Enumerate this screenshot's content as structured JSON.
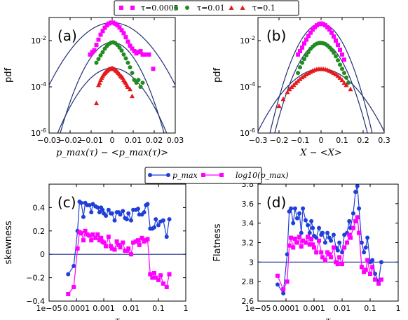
{
  "chart_data": [
    {
      "type": "scatter",
      "panel_label": "(a)",
      "xlabel": "p_max(τ) − <p_max(τ)>",
      "ylabel": "pdf",
      "xlim": [
        -0.03,
        0.03
      ],
      "ylim_log10": [
        -6,
        -1
      ],
      "yscale": "log",
      "x_ticks": [
        "−0.03",
        "−0.02",
        "−0.01",
        "0",
        "0.01",
        "0.02",
        "0.03"
      ],
      "y_ticks": [
        "10^-6",
        "10^-4",
        "10^-2"
      ],
      "legend": [
        "τ=0.0005",
        "τ=0.01",
        "τ=0.1"
      ],
      "series": [
        {
          "name": "τ=0.0005",
          "color": "#ff00ff",
          "marker": "square",
          "x": [
            -0.0105,
            -0.0095,
            -0.0085,
            -0.0075,
            -0.0065,
            -0.0055,
            -0.0045,
            -0.0035,
            -0.0025,
            -0.0015,
            -0.0005,
            0.0005,
            0.0015,
            0.0025,
            0.0035,
            0.0045,
            0.0055,
            0.0065,
            0.0075,
            0.0085,
            0.0095,
            0.0105,
            0.0115,
            0.0125,
            0.0135,
            0.0145,
            0.0155,
            0.0175,
            0.0195
          ],
          "y": [
            0.0025,
            0.0032,
            0.0038,
            0.0065,
            0.011,
            0.018,
            0.026,
            0.036,
            0.046,
            0.055,
            0.06,
            0.06,
            0.054,
            0.046,
            0.037,
            0.028,
            0.021,
            0.014,
            0.009,
            0.006,
            0.0045,
            0.0035,
            0.0028,
            0.0032,
            0.0035,
            0.0025,
            0.0025,
            0.0025,
            0.0006
          ]
        },
        {
          "name": "τ=0.01",
          "color": "#228b22",
          "marker": "circle",
          "x": [
            -0.0075,
            -0.0065,
            -0.0055,
            -0.0045,
            -0.0035,
            -0.0025,
            -0.0015,
            -0.0005,
            0.0005,
            0.0015,
            0.0025,
            0.0035,
            0.0045,
            0.0055,
            0.0065,
            0.0075,
            0.0085,
            0.0095,
            0.0105,
            0.0115,
            0.0125,
            0.0135,
            0.0145
          ],
          "y": [
            0.0011,
            0.0016,
            0.0023,
            0.0032,
            0.0045,
            0.0058,
            0.0072,
            0.0082,
            0.0085,
            0.0078,
            0.0065,
            0.005,
            0.0037,
            0.0025,
            0.0017,
            0.0011,
            0.0007,
            0.0004,
            0.0002,
            0.00015,
            0.0002,
            0.0001,
            0.00015
          ]
        },
        {
          "name": "τ=0.1",
          "color": "#e41a1c",
          "marker": "triangle",
          "x": [
            -0.0075,
            -0.0065,
            -0.006,
            -0.0055,
            -0.005,
            -0.0045,
            -0.004,
            -0.0035,
            -0.003,
            -0.0025,
            -0.002,
            -0.0015,
            -0.001,
            -0.0005,
            0.0,
            0.0005,
            0.001,
            0.0015,
            0.002,
            0.0025,
            0.003,
            0.0035,
            0.004,
            0.0045,
            0.005,
            0.0055,
            0.006,
            0.0065,
            0.007,
            0.0075,
            0.0085,
            0.0095
          ],
          "y": [
            2e-05,
            0.00012,
            0.00015,
            0.0002,
            0.00025,
            0.0003,
            0.00035,
            0.0004,
            0.00045,
            0.0005,
            0.00055,
            0.0006,
            0.0006,
            0.00062,
            0.00065,
            0.0006,
            0.0006,
            0.00055,
            0.0005,
            0.00045,
            0.0004,
            0.00035,
            0.0003,
            0.00028,
            0.00025,
            0.0002,
            0.00017,
            0.00015,
            0.00012,
            0.0001,
            8e-05,
            4e-05
          ]
        }
      ],
      "fit_curves": [
        {
          "peak": 0.06,
          "sigma": 0.0085,
          "color": "#1f2f70"
        },
        {
          "peak": 0.0085,
          "sigma": 0.0058,
          "color": "#1f2f70"
        },
        {
          "peak": 0.00065,
          "sigma": 0.0072,
          "color": "#1f2f70"
        }
      ]
    },
    {
      "type": "scatter",
      "panel_label": "(b)",
      "xlabel": "X − <X>",
      "ylabel": "pdf",
      "xlim": [
        -0.3,
        0.3
      ],
      "ylim_log10": [
        -6,
        -1
      ],
      "yscale": "log",
      "x_ticks": [
        "−0.3",
        "−0.2",
        "−0.1",
        "0",
        "0.1",
        "0.2",
        "0.3"
      ],
      "y_ticks": [
        "10^-6",
        "10^-4",
        "10^-2"
      ],
      "series": [
        {
          "name": "τ=0.0005",
          "color": "#ff00ff",
          "marker": "square",
          "x": [
            -0.11,
            -0.1,
            -0.09,
            -0.08,
            -0.07,
            -0.06,
            -0.05,
            -0.04,
            -0.03,
            -0.02,
            -0.01,
            0.0,
            0.01,
            0.02,
            0.03,
            0.04,
            0.05,
            0.06,
            0.07,
            0.08,
            0.09,
            0.1,
            0.11
          ],
          "y": [
            0.0025,
            0.0035,
            0.005,
            0.0075,
            0.011,
            0.016,
            0.022,
            0.03,
            0.038,
            0.046,
            0.052,
            0.055,
            0.052,
            0.046,
            0.038,
            0.03,
            0.022,
            0.015,
            0.01,
            0.0065,
            0.004,
            0.0025,
            0.0015
          ]
        },
        {
          "name": "τ=0.01",
          "color": "#228b22",
          "marker": "circle",
          "x": [
            -0.11,
            -0.1,
            -0.09,
            -0.08,
            -0.07,
            -0.06,
            -0.05,
            -0.04,
            -0.03,
            -0.02,
            -0.01,
            0.0,
            0.01,
            0.02,
            0.03,
            0.04,
            0.05,
            0.06,
            0.07,
            0.08,
            0.09,
            0.1,
            0.11,
            0.12,
            0.13
          ],
          "y": [
            0.0004,
            0.0007,
            0.0011,
            0.0016,
            0.0023,
            0.0032,
            0.0044,
            0.0055,
            0.0066,
            0.0074,
            0.0079,
            0.008,
            0.0077,
            0.0071,
            0.0062,
            0.0051,
            0.004,
            0.003,
            0.0021,
            0.0014,
            0.0009,
            0.0006,
            0.0004,
            0.00025,
            0.00015
          ]
        },
        {
          "name": "τ=0.1",
          "color": "#e41a1c",
          "marker": "triangle",
          "x": [
            -0.2,
            -0.18,
            -0.16,
            -0.15,
            -0.14,
            -0.13,
            -0.12,
            -0.11,
            -0.1,
            -0.09,
            -0.08,
            -0.07,
            -0.06,
            -0.05,
            -0.04,
            -0.03,
            -0.02,
            -0.01,
            0.0,
            0.01,
            0.02,
            0.03,
            0.04,
            0.05,
            0.06,
            0.07,
            0.08,
            0.09,
            0.1,
            0.11,
            0.12,
            0.14
          ],
          "y": [
            1.5e-05,
            3e-05,
            6e-05,
            8e-05,
            0.0001,
            0.00012,
            0.00015,
            0.00018,
            0.00022,
            0.00026,
            0.0003,
            0.00035,
            0.0004,
            0.00045,
            0.0005,
            0.00055,
            0.00058,
            0.0006,
            0.0006,
            0.0006,
            0.00058,
            0.00055,
            0.0005,
            0.00045,
            0.0004,
            0.00035,
            0.0003,
            0.00025,
            0.0002,
            0.00015,
            0.00012,
            8e-05
          ]
        }
      ],
      "fit_curves": [
        {
          "peak": 0.055,
          "sigma": 0.052,
          "color": "#1f2f70"
        },
        {
          "peak": 0.008,
          "sigma": 0.052,
          "color": "#1f2f70"
        },
        {
          "peak": 0.0006,
          "sigma": 0.085,
          "color": "#1f2f70"
        }
      ]
    },
    {
      "type": "line",
      "panel_label": "(c)",
      "xlabel": "τ",
      "ylabel": "skewness",
      "xscale": "log",
      "xlim_log10": [
        -5,
        0
      ],
      "ylim": [
        -0.4,
        0.6
      ],
      "x_ticks": [
        "1e−05",
        "0.0001",
        "0.001",
        "0.01",
        "0.1",
        "1"
      ],
      "y_ticks": [
        "−0.4",
        "−0.2",
        "0",
        "0.2",
        "0.4"
      ],
      "legend": [
        "p_max",
        "log10(p_max)"
      ],
      "reference_line": 0,
      "series": [
        {
          "name": "p_max",
          "color": "#1f3fd8",
          "marker": "circle",
          "x": [
            5e-05,
            8e-05,
            0.00011,
            0.00013,
            0.00015,
            0.00018,
            0.00021,
            0.00025,
            0.0003,
            0.00035,
            0.0004,
            0.0005,
            0.0006,
            0.0007,
            0.0008,
            0.0009,
            0.001,
            0.0012,
            0.0015,
            0.0018,
            0.002,
            0.0025,
            0.003,
            0.0035,
            0.004,
            0.005,
            0.006,
            0.007,
            0.008,
            0.01,
            0.012,
            0.015,
            0.018,
            0.02,
            0.025,
            0.03,
            0.035,
            0.04,
            0.05,
            0.06,
            0.07,
            0.08,
            0.1,
            0.12,
            0.15,
            0.2,
            0.25
          ],
          "y": [
            -0.17,
            -0.1,
            0.2,
            0.45,
            0.44,
            0.32,
            0.44,
            0.42,
            0.42,
            0.36,
            0.43,
            0.41,
            0.4,
            0.36,
            0.4,
            0.38,
            0.35,
            0.33,
            0.38,
            0.35,
            0.35,
            0.29,
            0.36,
            0.36,
            0.34,
            0.37,
            0.31,
            0.3,
            0.35,
            0.29,
            0.38,
            0.38,
            0.39,
            0.34,
            0.34,
            0.36,
            0.42,
            0.43,
            0.22,
            0.22,
            0.23,
            0.3,
            0.25,
            0.28,
            0.29,
            0.15,
            0.3
          ]
        },
        {
          "name": "log10(p_max)",
          "color": "#ff00ff",
          "marker": "square",
          "x": [
            5e-05,
            8e-05,
            0.00011,
            0.00013,
            0.00015,
            0.00018,
            0.00021,
            0.00025,
            0.0003,
            0.00035,
            0.0004,
            0.0005,
            0.0006,
            0.0007,
            0.0008,
            0.0009,
            0.001,
            0.0012,
            0.0015,
            0.0018,
            0.002,
            0.0025,
            0.003,
            0.0035,
            0.004,
            0.005,
            0.006,
            0.007,
            0.008,
            0.01,
            0.012,
            0.015,
            0.018,
            0.02,
            0.025,
            0.03,
            0.035,
            0.04,
            0.05,
            0.06,
            0.07,
            0.08,
            0.1,
            0.12,
            0.15,
            0.2,
            0.25
          ],
          "y": [
            -0.34,
            -0.28,
            0.05,
            0.19,
            0.18,
            0.12,
            0.2,
            0.17,
            0.16,
            0.12,
            0.17,
            0.14,
            0.17,
            0.12,
            0.14,
            0.11,
            0.1,
            0.07,
            0.15,
            0.07,
            0.05,
            0.04,
            0.11,
            0.08,
            0.06,
            0.1,
            0.03,
            0.03,
            0.05,
            0.0,
            0.1,
            0.11,
            0.12,
            0.08,
            0.14,
            0.11,
            0.12,
            0.13,
            -0.17,
            -0.2,
            -0.16,
            -0.2,
            -0.22,
            -0.18,
            -0.25,
            -0.28,
            -0.17
          ]
        }
      ]
    },
    {
      "type": "line",
      "panel_label": "(d)",
      "xlabel": "τ",
      "ylabel": "Flatness",
      "xscale": "log",
      "xlim_log10": [
        -5,
        0
      ],
      "ylim": [
        2.6,
        3.8
      ],
      "x_ticks": [
        "1e−05",
        "0.0001",
        "0.001",
        "0.01",
        "0.1",
        "1"
      ],
      "y_ticks": [
        "2.6",
        "2.8",
        "3",
        "3.2",
        "3.4",
        "3.6",
        "3.8"
      ],
      "reference_line": 3,
      "series": [
        {
          "name": "p_max",
          "color": "#1f3fd8",
          "marker": "circle",
          "x": [
            5e-05,
            8e-05,
            0.00011,
            0.00013,
            0.00015,
            0.00018,
            0.00021,
            0.00025,
            0.0003,
            0.00035,
            0.0004,
            0.0005,
            0.0006,
            0.0007,
            0.0008,
            0.0009,
            0.001,
            0.0012,
            0.0015,
            0.0018,
            0.002,
            0.0025,
            0.003,
            0.0035,
            0.004,
            0.005,
            0.006,
            0.007,
            0.008,
            0.01,
            0.012,
            0.015,
            0.018,
            0.02,
            0.025,
            0.03,
            0.035,
            0.04,
            0.05,
            0.06,
            0.07,
            0.08,
            0.1,
            0.12,
            0.15,
            0.2,
            0.25
          ],
          "y": [
            2.77,
            2.68,
            3.08,
            3.52,
            3.55,
            3.4,
            3.55,
            3.45,
            3.5,
            3.3,
            3.55,
            3.43,
            3.38,
            3.3,
            3.42,
            3.35,
            3.27,
            3.25,
            3.35,
            3.28,
            3.3,
            3.2,
            3.3,
            3.25,
            3.22,
            3.28,
            3.15,
            3.12,
            3.2,
            3.1,
            3.28,
            3.3,
            3.42,
            3.35,
            3.5,
            3.72,
            3.78,
            3.55,
            3.2,
            3.1,
            3.15,
            3.25,
            3.0,
            3.02,
            2.88,
            2.8,
            3.0
          ]
        },
        {
          "name": "log10(p_max)",
          "color": "#ff00ff",
          "marker": "square",
          "x": [
            5e-05,
            8e-05,
            0.00011,
            0.00013,
            0.00015,
            0.00018,
            0.00021,
            0.00025,
            0.0003,
            0.00035,
            0.0004,
            0.0005,
            0.0006,
            0.0007,
            0.0008,
            0.0009,
            0.001,
            0.0012,
            0.0015,
            0.0018,
            0.002,
            0.0025,
            0.003,
            0.0035,
            0.004,
            0.005,
            0.006,
            0.007,
            0.008,
            0.01,
            0.012,
            0.015,
            0.018,
            0.02,
            0.025,
            0.03,
            0.035,
            0.04,
            0.05,
            0.06,
            0.07,
            0.08,
            0.1,
            0.12,
            0.15,
            0.2,
            0.25
          ],
          "y": [
            2.86,
            2.72,
            2.8,
            3.17,
            3.25,
            3.15,
            3.24,
            3.2,
            3.26,
            3.16,
            3.22,
            3.2,
            3.26,
            3.18,
            3.24,
            3.18,
            3.15,
            3.1,
            3.22,
            3.1,
            3.05,
            3.02,
            3.1,
            3.08,
            3.05,
            3.15,
            3.0,
            2.98,
            3.05,
            2.98,
            3.15,
            3.2,
            3.28,
            3.25,
            3.35,
            3.42,
            3.46,
            3.3,
            2.95,
            2.9,
            2.92,
            3.02,
            2.88,
            2.95,
            2.82,
            2.78,
            2.82
          ]
        }
      ]
    }
  ]
}
